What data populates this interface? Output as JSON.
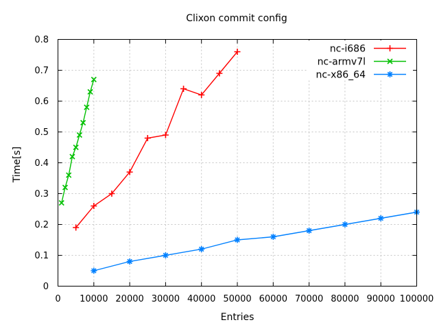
{
  "chart_data": {
    "type": "line",
    "title": "Clixon commit config",
    "xlabel": "Entries",
    "ylabel": "Time[s]",
    "xlim": [
      0,
      100000
    ],
    "ylim": [
      0,
      0.8
    ],
    "xtick_step": 10000,
    "ytick_step": 0.1,
    "grid": true,
    "legend_position": "top-right-inside",
    "colors": {
      "background": "#ffffff",
      "axis": "#000000",
      "grid": "#c4c4c4",
      "text": "#000000"
    },
    "series": [
      {
        "name": "nc-i686",
        "color": "#ff0000",
        "marker": "plus",
        "x": [
          5000,
          10000,
          15000,
          20000,
          25000,
          30000,
          35000,
          40000,
          45000,
          50000
        ],
        "y": [
          0.19,
          0.26,
          0.3,
          0.37,
          0.48,
          0.49,
          0.64,
          0.62,
          0.69,
          0.76
        ]
      },
      {
        "name": "nc-armv7l",
        "color": "#00c000",
        "marker": "cross",
        "x": [
          1000,
          2000,
          3000,
          4000,
          5000,
          6000,
          7000,
          8000,
          9000,
          10000
        ],
        "y": [
          0.27,
          0.32,
          0.36,
          0.42,
          0.45,
          0.49,
          0.53,
          0.58,
          0.63,
          0.67
        ]
      },
      {
        "name": "nc-x86_64",
        "color": "#0080ff",
        "marker": "asterisk",
        "x": [
          10000,
          20000,
          30000,
          40000,
          50000,
          60000,
          70000,
          80000,
          90000,
          100000
        ],
        "y": [
          0.05,
          0.08,
          0.1,
          0.12,
          0.15,
          0.16,
          0.18,
          0.2,
          0.22,
          0.24
        ]
      }
    ]
  }
}
